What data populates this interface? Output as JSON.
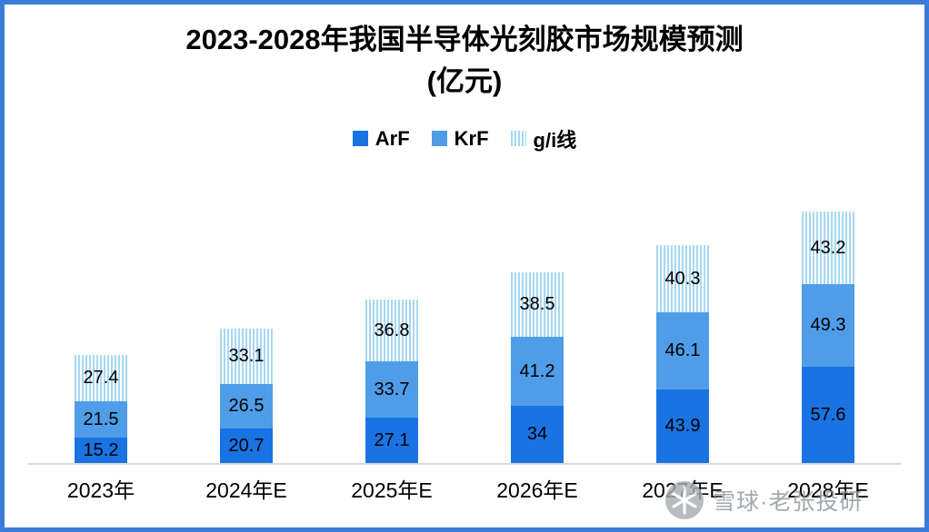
{
  "title": {
    "line1": "2023-2028年我国半导体光刻胶市场规模预测",
    "line2": "(亿元)"
  },
  "chart_data": {
    "type": "bar",
    "stacked": true,
    "title": "2023-2028年我国半导体光刻胶市场规模预测(亿元)",
    "xlabel": "",
    "ylabel": "",
    "ylim": [
      0,
      160
    ],
    "grid": false,
    "legend_position": "top",
    "categories": [
      "2023年",
      "2024年E",
      "2025年E",
      "2026年E",
      "2027年E",
      "2028年E"
    ],
    "series": [
      {
        "name": "ArF",
        "color": "#1a73e2",
        "pattern": null,
        "values": [
          15.2,
          20.7,
          27.1,
          34,
          43.9,
          57.6
        ]
      },
      {
        "name": "KrF",
        "color": "#4f9de8",
        "pattern": null,
        "values": [
          21.5,
          26.5,
          33.7,
          41.2,
          46.1,
          49.3
        ]
      },
      {
        "name": "g/i线",
        "color": "#a6d8f2",
        "pattern": "vertical-stripes",
        "values": [
          27.4,
          33.1,
          36.8,
          38.5,
          40.3,
          43.2
        ]
      }
    ],
    "totals": [
      64.1,
      80.3,
      97.6,
      113.7,
      130.3,
      150.1
    ]
  },
  "frame": {
    "border_color": "#3b7cd8",
    "axis_line_color": "#d9d9d9"
  },
  "watermark": {
    "logo": "xueqiu-snowball-logo",
    "text": "雪球·老张投研"
  }
}
